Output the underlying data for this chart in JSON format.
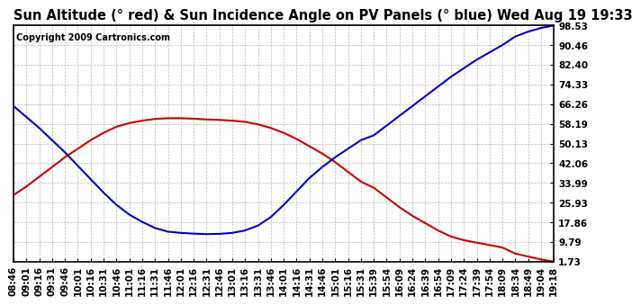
{
  "title": "Sun Altitude (° red) & Sun Incidence Angle on PV Panels (° blue) Wed Aug 19 19:33",
  "copyright": "Copyright 2009 Cartronics.com",
  "background_color": "#ffffff",
  "grid_color": "#bbbbbb",
  "x_labels": [
    "08:46",
    "09:01",
    "09:16",
    "09:31",
    "09:46",
    "10:01",
    "10:16",
    "10:31",
    "10:46",
    "11:01",
    "11:16",
    "11:31",
    "11:46",
    "12:01",
    "12:16",
    "12:31",
    "12:46",
    "13:01",
    "13:16",
    "13:31",
    "13:46",
    "14:01",
    "14:16",
    "14:31",
    "14:46",
    "15:01",
    "15:16",
    "15:31",
    "15:39",
    "15:54",
    "16:09",
    "16:24",
    "16:39",
    "16:54",
    "17:09",
    "17:24",
    "17:39",
    "17:54",
    "18:09",
    "18:34",
    "18:49",
    "19:04",
    "19:18"
  ],
  "y_ticks": [
    1.73,
    9.79,
    17.86,
    25.93,
    33.99,
    42.06,
    50.13,
    58.19,
    66.26,
    74.33,
    82.4,
    90.46,
    98.53
  ],
  "y_min": 1.73,
  "y_max": 98.53,
  "red_line_color": "#cc0000",
  "blue_line_color": "#0000cc",
  "title_fontsize": 10.5,
  "tick_fontsize": 7.5,
  "copyright_fontsize": 7,
  "red_data": [
    29.0,
    32.5,
    36.5,
    40.5,
    44.5,
    48.0,
    51.5,
    54.5,
    57.0,
    58.5,
    59.5,
    60.2,
    60.5,
    60.5,
    60.3,
    60.0,
    59.8,
    59.5,
    59.0,
    58.0,
    56.5,
    54.5,
    52.0,
    49.0,
    46.0,
    42.5,
    38.5,
    34.5,
    32.0,
    28.0,
    24.0,
    20.5,
    17.5,
    14.5,
    12.0,
    10.5,
    9.5,
    8.5,
    7.5,
    5.0,
    3.8,
    2.6,
    1.73
  ],
  "blue_data": [
    65.5,
    61.0,
    56.5,
    51.5,
    46.5,
    41.0,
    35.5,
    30.0,
    25.0,
    21.0,
    18.0,
    15.5,
    14.0,
    13.5,
    13.2,
    13.0,
    13.1,
    13.5,
    14.5,
    16.5,
    20.0,
    25.0,
    30.5,
    36.0,
    40.5,
    44.5,
    48.0,
    51.5,
    53.5,
    57.5,
    61.5,
    65.5,
    69.5,
    73.5,
    77.5,
    81.0,
    84.5,
    87.5,
    90.5,
    94.0,
    96.0,
    97.5,
    98.53
  ]
}
